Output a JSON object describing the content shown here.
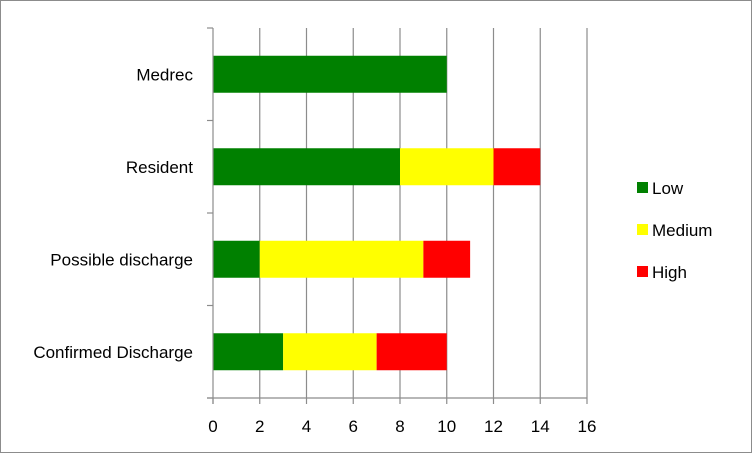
{
  "chart_data": {
    "type": "bar",
    "orientation": "horizontal",
    "stacked": true,
    "title": "",
    "xlabel": "",
    "ylabel": "",
    "xlim": [
      0,
      16
    ],
    "xticks": [
      0,
      2,
      4,
      6,
      8,
      10,
      12,
      14,
      16
    ],
    "grid": true,
    "legend_position": "right",
    "categories": [
      "Medrec",
      "Resident",
      "Possible discharge",
      "Confirmed Discharge"
    ],
    "series": [
      {
        "name": "Low",
        "color": "#008000",
        "values": [
          10,
          8,
          2,
          3
        ]
      },
      {
        "name": "Medium",
        "color": "#ffff00",
        "values": [
          0,
          4,
          7,
          4
        ]
      },
      {
        "name": "High",
        "color": "#ff0000",
        "values": [
          0,
          2,
          2,
          3
        ]
      }
    ]
  }
}
